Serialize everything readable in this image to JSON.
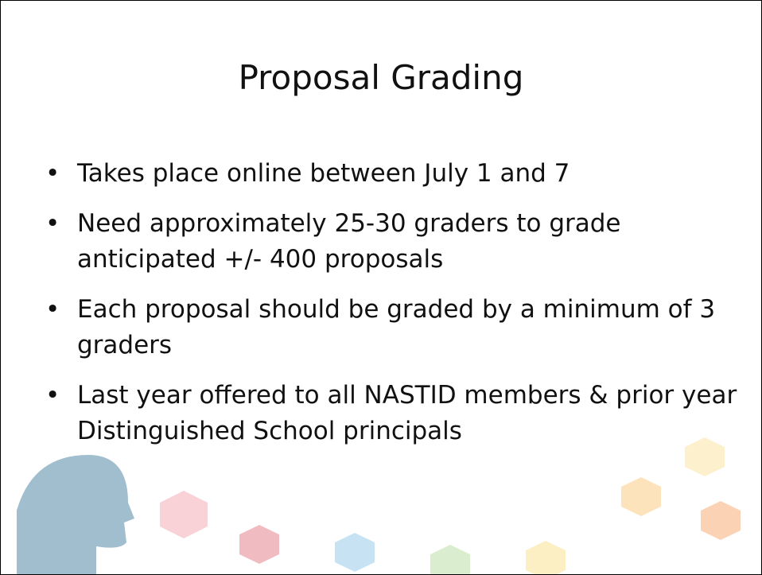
{
  "slide": {
    "title": "Proposal Grading",
    "bullets": [
      "Takes place online between July 1 and 7",
      "Need approximately 25-30 graders to grade anticipated +/- 400 proposals",
      "Each proposal should be graded by a minimum of 3 graders",
      "Last year offered to all NASTID members & prior year Distinguished School principals"
    ]
  }
}
